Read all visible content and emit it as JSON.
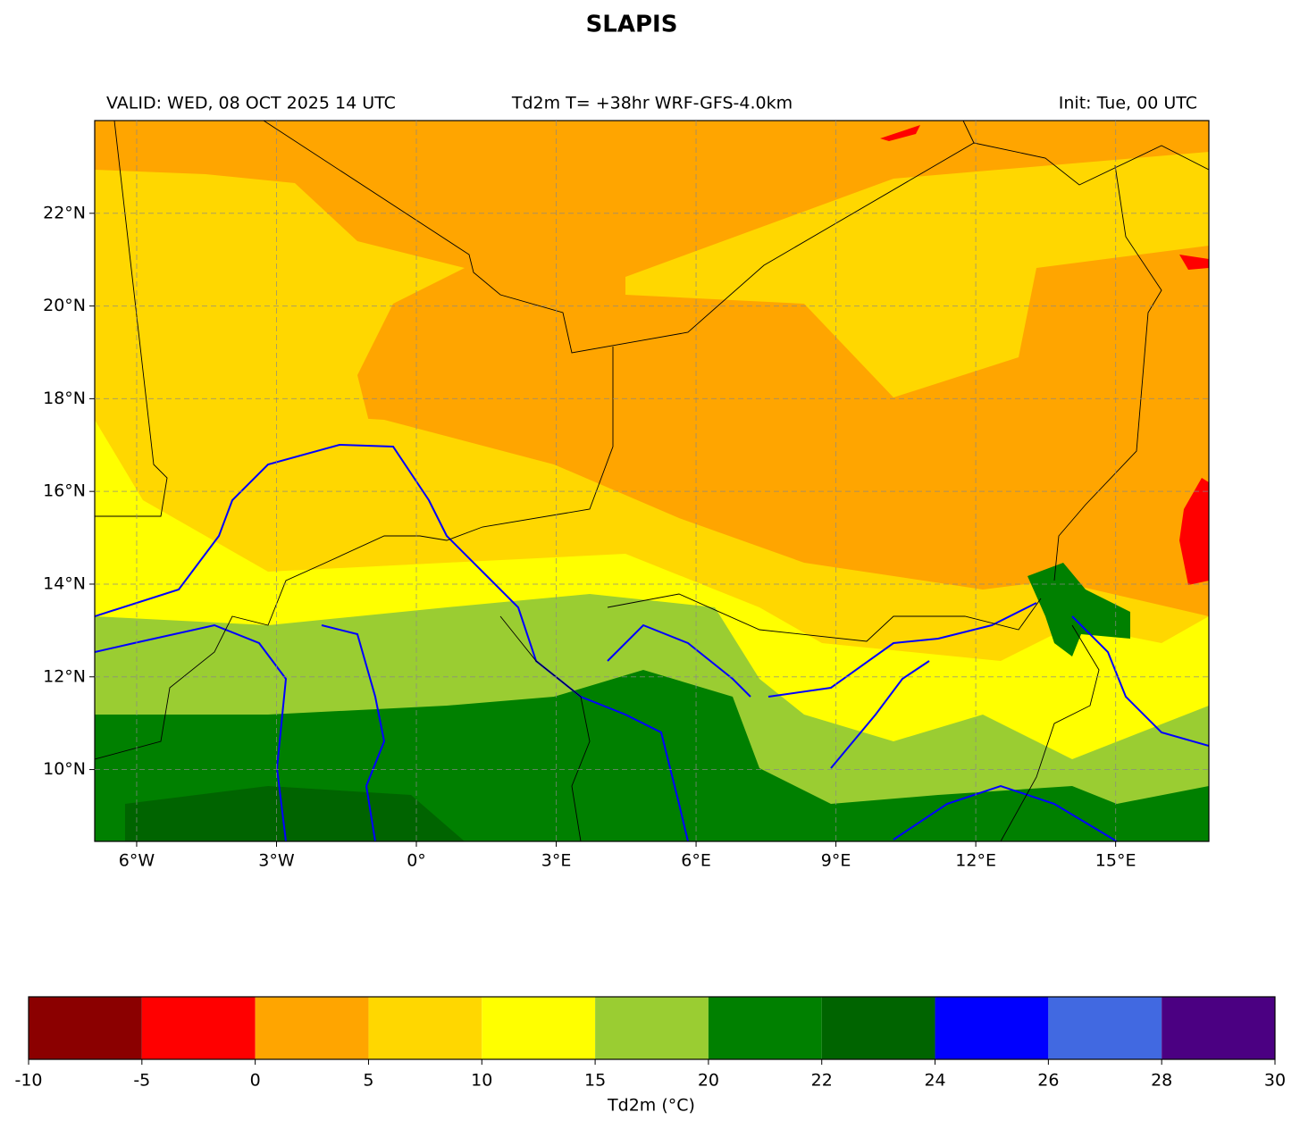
{
  "title": "SLAPIS",
  "valid": "VALID: WED, 08 OCT 2025 14 UTC",
  "subtitle": "Td2m T= +38hr WRF-GFS-4.0km",
  "init": "Init: Tue, 00 UTC",
  "map": {
    "xlim": [
      -6.9,
      17
    ],
    "ylim": [
      8.45,
      24
    ],
    "xticks": [
      {
        "value": -6,
        "label": "6°W"
      },
      {
        "value": -3,
        "label": "3°W"
      },
      {
        "value": 0,
        "label": "0°"
      },
      {
        "value": 3,
        "label": "3°E"
      },
      {
        "value": 6,
        "label": "6°E"
      },
      {
        "value": 9,
        "label": "9°E"
      },
      {
        "value": 12,
        "label": "12°E"
      },
      {
        "value": 15,
        "label": "15°E"
      }
    ],
    "yticks": [
      {
        "value": 10,
        "label": "10°N"
      },
      {
        "value": 12,
        "label": "12°N"
      },
      {
        "value": 14,
        "label": "14°N"
      },
      {
        "value": 16,
        "label": "16°N"
      },
      {
        "value": 18,
        "label": "18°N"
      },
      {
        "value": 20,
        "label": "20°N"
      },
      {
        "value": 22,
        "label": "22°N"
      }
    ],
    "grid": true
  },
  "colorbar": {
    "label": "Td2m (°C)",
    "bounds": [
      -10,
      -5,
      0,
      5,
      10,
      15,
      20,
      22,
      24,
      26,
      28,
      30
    ],
    "colors": [
      "#8b0000",
      "#ff0000",
      "#ffa500",
      "#ffd700",
      "#ffff00",
      "#9acd32",
      "#008000",
      "#006400",
      "#0000ff",
      "#4169e1",
      "#4b0082"
    ]
  }
}
